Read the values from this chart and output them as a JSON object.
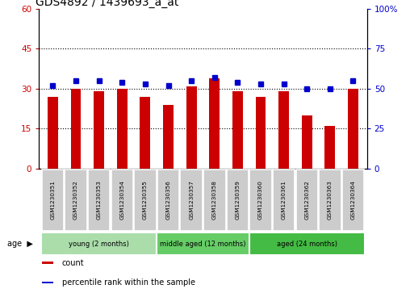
{
  "title": "GDS4892 / 1439693_a_at",
  "samples": [
    "GSM1230351",
    "GSM1230352",
    "GSM1230353",
    "GSM1230354",
    "GSM1230355",
    "GSM1230356",
    "GSM1230357",
    "GSM1230358",
    "GSM1230359",
    "GSM1230360",
    "GSM1230361",
    "GSM1230362",
    "GSM1230363",
    "GSM1230364"
  ],
  "counts": [
    27,
    30,
    29,
    30,
    27,
    24,
    31,
    34,
    29,
    27,
    29,
    20,
    16,
    30
  ],
  "percentiles": [
    52,
    55,
    55,
    54,
    53,
    52,
    55,
    57,
    54,
    53,
    53,
    50,
    50,
    55
  ],
  "bar_color": "#cc0000",
  "dot_color": "#0000cc",
  "ylim_left": [
    0,
    60
  ],
  "ylim_right": [
    0,
    100
  ],
  "yticks_left": [
    0,
    15,
    30,
    45,
    60
  ],
  "yticks_right": [
    0,
    25,
    50,
    75,
    100
  ],
  "ytick_labels_left": [
    "0",
    "15",
    "30",
    "45",
    "60"
  ],
  "ytick_labels_right": [
    "0",
    "25",
    "50",
    "75",
    "100%"
  ],
  "grp_defs": [
    {
      "start": 0,
      "end": 4,
      "color": "#aaddaa",
      "label": "young (2 months)"
    },
    {
      "start": 5,
      "end": 8,
      "color": "#66cc66",
      "label": "middle aged (12 months)"
    },
    {
      "start": 9,
      "end": 13,
      "color": "#44bb44",
      "label": "aged (24 months)"
    }
  ],
  "legend_items": [
    {
      "color": "#cc0000",
      "label": "count"
    },
    {
      "color": "#0000cc",
      "label": "percentile rank within the sample"
    }
  ],
  "bar_width": 0.45,
  "sample_box_color": "#cccccc",
  "plot_bg": "#ffffff"
}
